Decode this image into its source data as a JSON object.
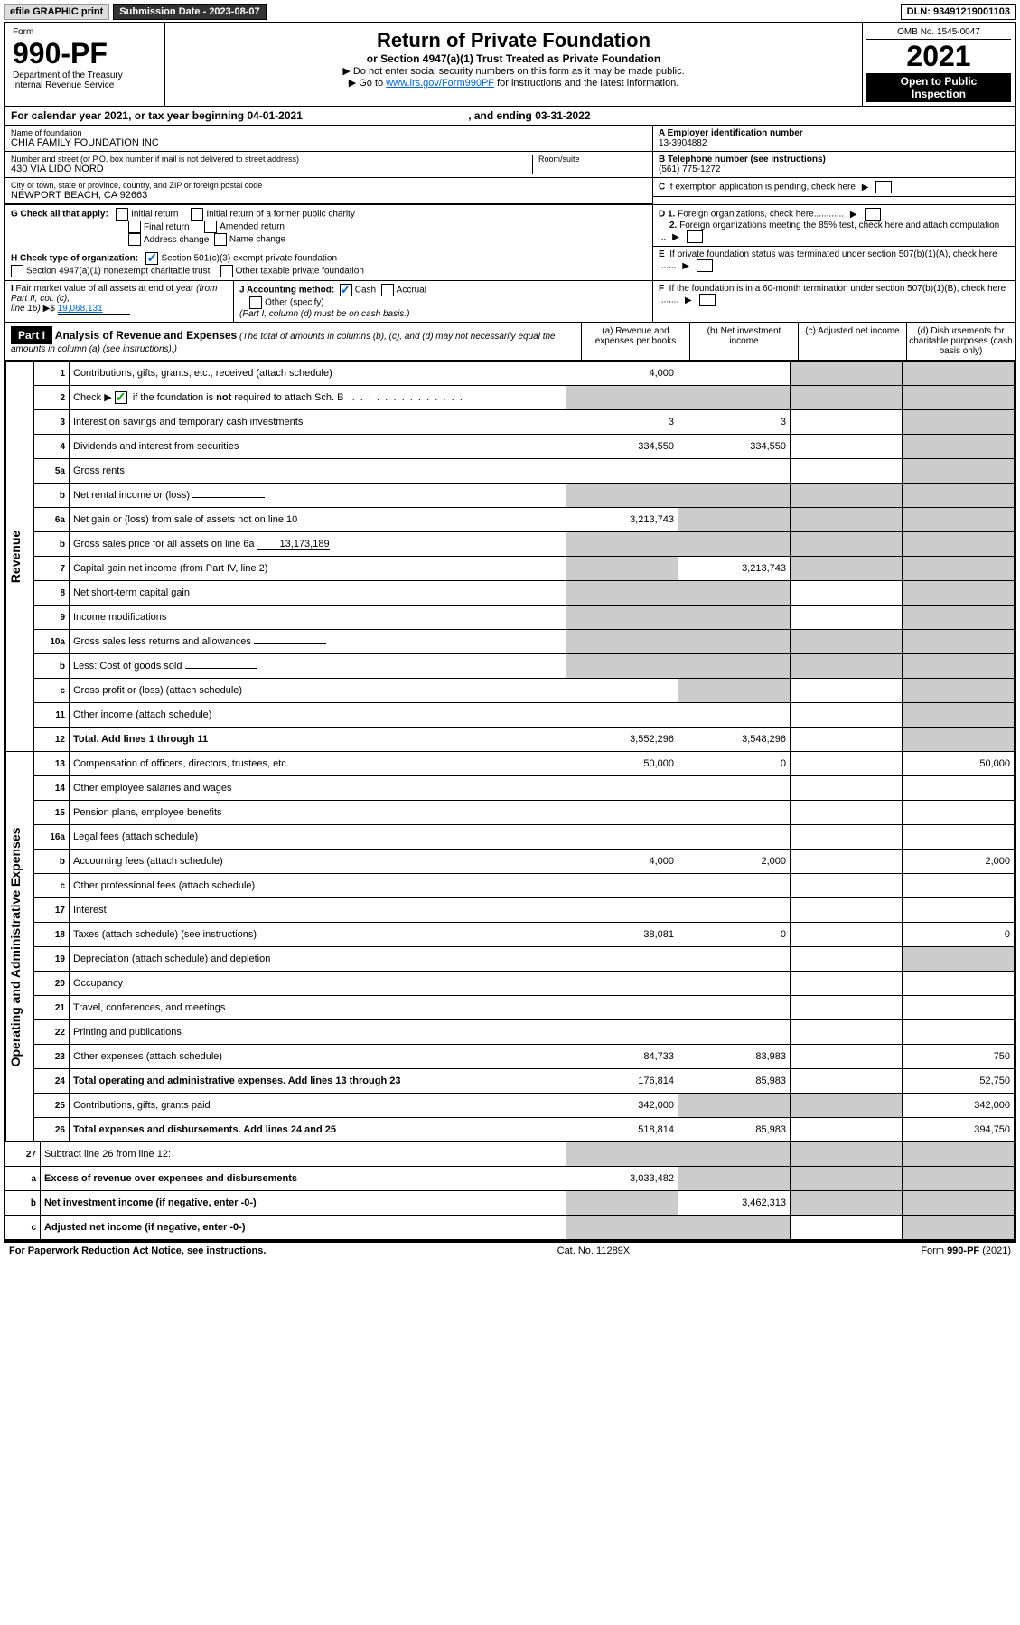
{
  "topbar": {
    "efile": "efile GRAPHIC print",
    "submission": "Submission Date - 2023-08-07",
    "dln": "DLN: 93491219001103"
  },
  "header": {
    "form_label": "Form",
    "form_number": "990-PF",
    "dept1": "Department of the Treasury",
    "dept2": "Internal Revenue Service",
    "title": "Return of Private Foundation",
    "subtitle": "or Section 4947(a)(1) Trust Treated as Private Foundation",
    "note1": "▶ Do not enter social security numbers on this form as it may be made public.",
    "note2_pre": "▶ Go to ",
    "note2_link": "www.irs.gov/Form990PF",
    "note2_post": " for instructions and the latest information.",
    "omb": "OMB No. 1545-0047",
    "year": "2021",
    "open1": "Open to Public",
    "open2": "Inspection"
  },
  "calendar": {
    "text_pre": "For calendar year 2021, or tax year beginning ",
    "begin": "04-01-2021",
    "text_mid": " , and ending ",
    "end": "03-31-2022"
  },
  "info": {
    "name_label": "Name of foundation",
    "name": "CHIA FAMILY FOUNDATION INC",
    "addr_label": "Number and street (or P.O. box number if mail is not delivered to street address)",
    "addr": "430 VIA LIDO NORD",
    "room_label": "Room/suite",
    "city_label": "City or town, state or province, country, and ZIP or foreign postal code",
    "city": "NEWPORT BEACH, CA  92663",
    "a_label": "A Employer identification number",
    "a_val": "13-3904882",
    "b_label": "B Telephone number (see instructions)",
    "b_val": "(561) 775-1272",
    "c_label": "C If exemption application is pending, check here",
    "g_label": "G Check all that apply:",
    "g_opts": [
      "Initial return",
      "Initial return of a former public charity",
      "Final return",
      "Amended return",
      "Address change",
      "Name change"
    ],
    "d1": "D 1. Foreign organizations, check here............",
    "d2": "2. Foreign organizations meeting the 85% test, check here and attach computation ...",
    "h_label": "H Check type of organization:",
    "h_opt1": "Section 501(c)(3) exempt private foundation",
    "h_opt2": "Section 4947(a)(1) nonexempt charitable trust",
    "h_opt3": "Other taxable private foundation",
    "e_label": "E  If private foundation status was terminated under section 507(b)(1)(A), check here .......",
    "i_label": "I Fair market value of all assets at end of year (from Part II, col. (c),",
    "i_line": "line 16) ▶$ ",
    "i_val": "19,068,131",
    "j_label": "J Accounting method:",
    "j_cash": "Cash",
    "j_accrual": "Accrual",
    "j_other": "Other (specify)",
    "j_note": "(Part I, column (d) must be on cash basis.)",
    "f_label": "F  If the foundation is in a 60-month termination under section 507(b)(1)(B), check here ........"
  },
  "part1": {
    "label": "Part I",
    "title": "Analysis of Revenue and Expenses",
    "sub": " (The total of amounts in columns (b), (c), and (d) may not necessarily equal the amounts in column (a) (see instructions).)",
    "col_a": "(a)  Revenue and expenses per books",
    "col_b": "(b)  Net investment income",
    "col_c": "(c)  Adjusted net income",
    "col_d": "(d)  Disbursements for charitable purposes (cash basis only)"
  },
  "sections": {
    "revenue": "Revenue",
    "expenses": "Operating and Administrative Expenses"
  },
  "rows": [
    {
      "n": "1",
      "desc": "Contributions, gifts, grants, etc., received (attach schedule)",
      "a": "4,000",
      "b": "",
      "c": "shade",
      "d": "shade"
    },
    {
      "n": "2",
      "desc": "Check ▶ ☑ if the foundation is not required to attach Sch. B",
      "a": "shade",
      "b": "shade",
      "c": "shade",
      "d": "shade",
      "checkmark": true
    },
    {
      "n": "3",
      "desc": "Interest on savings and temporary cash investments",
      "a": "3",
      "b": "3",
      "c": "",
      "d": "shade"
    },
    {
      "n": "4",
      "desc": "Dividends and interest from securities",
      "a": "334,550",
      "b": "334,550",
      "c": "",
      "d": "shade"
    },
    {
      "n": "5a",
      "desc": "Gross rents",
      "a": "",
      "b": "",
      "c": "",
      "d": "shade"
    },
    {
      "n": "b",
      "desc": "Net rental income or (loss)",
      "a": "shade",
      "b": "shade",
      "c": "shade",
      "d": "shade",
      "inline": ""
    },
    {
      "n": "6a",
      "desc": "Net gain or (loss) from sale of assets not on line 10",
      "a": "3,213,743",
      "b": "shade",
      "c": "shade",
      "d": "shade"
    },
    {
      "n": "b",
      "desc": "Gross sales price for all assets on line 6a",
      "a": "shade",
      "b": "shade",
      "c": "shade",
      "d": "shade",
      "inline": "13,173,189"
    },
    {
      "n": "7",
      "desc": "Capital gain net income (from Part IV, line 2)",
      "a": "shade",
      "b": "3,213,743",
      "c": "shade",
      "d": "shade"
    },
    {
      "n": "8",
      "desc": "Net short-term capital gain",
      "a": "shade",
      "b": "shade",
      "c": "",
      "d": "shade"
    },
    {
      "n": "9",
      "desc": "Income modifications",
      "a": "shade",
      "b": "shade",
      "c": "",
      "d": "shade"
    },
    {
      "n": "10a",
      "desc": "Gross sales less returns and allowances",
      "a": "shade",
      "b": "shade",
      "c": "shade",
      "d": "shade",
      "inline": ""
    },
    {
      "n": "b",
      "desc": "Less: Cost of goods sold",
      "a": "shade",
      "b": "shade",
      "c": "shade",
      "d": "shade",
      "inline": ""
    },
    {
      "n": "c",
      "desc": "Gross profit or (loss) (attach schedule)",
      "a": "",
      "b": "shade",
      "c": "",
      "d": "shade"
    },
    {
      "n": "11",
      "desc": "Other income (attach schedule)",
      "a": "",
      "b": "",
      "c": "",
      "d": "shade"
    },
    {
      "n": "12",
      "desc": "Total. Add lines 1 through 11",
      "a": "3,552,296",
      "b": "3,548,296",
      "c": "",
      "d": "shade",
      "bold": true
    }
  ],
  "exp_rows": [
    {
      "n": "13",
      "desc": "Compensation of officers, directors, trustees, etc.",
      "a": "50,000",
      "b": "0",
      "c": "",
      "d": "50,000"
    },
    {
      "n": "14",
      "desc": "Other employee salaries and wages",
      "a": "",
      "b": "",
      "c": "",
      "d": ""
    },
    {
      "n": "15",
      "desc": "Pension plans, employee benefits",
      "a": "",
      "b": "",
      "c": "",
      "d": ""
    },
    {
      "n": "16a",
      "desc": "Legal fees (attach schedule)",
      "a": "",
      "b": "",
      "c": "",
      "d": ""
    },
    {
      "n": "b",
      "desc": "Accounting fees (attach schedule)",
      "a": "4,000",
      "b": "2,000",
      "c": "",
      "d": "2,000"
    },
    {
      "n": "c",
      "desc": "Other professional fees (attach schedule)",
      "a": "",
      "b": "",
      "c": "",
      "d": ""
    },
    {
      "n": "17",
      "desc": "Interest",
      "a": "",
      "b": "",
      "c": "",
      "d": ""
    },
    {
      "n": "18",
      "desc": "Taxes (attach schedule) (see instructions)",
      "a": "38,081",
      "b": "0",
      "c": "",
      "d": "0"
    },
    {
      "n": "19",
      "desc": "Depreciation (attach schedule) and depletion",
      "a": "",
      "b": "",
      "c": "",
      "d": "shade"
    },
    {
      "n": "20",
      "desc": "Occupancy",
      "a": "",
      "b": "",
      "c": "",
      "d": ""
    },
    {
      "n": "21",
      "desc": "Travel, conferences, and meetings",
      "a": "",
      "b": "",
      "c": "",
      "d": ""
    },
    {
      "n": "22",
      "desc": "Printing and publications",
      "a": "",
      "b": "",
      "c": "",
      "d": ""
    },
    {
      "n": "23",
      "desc": "Other expenses (attach schedule)",
      "a": "84,733",
      "b": "83,983",
      "c": "",
      "d": "750"
    },
    {
      "n": "24",
      "desc": "Total operating and administrative expenses. Add lines 13 through 23",
      "a": "176,814",
      "b": "85,983",
      "c": "",
      "d": "52,750",
      "bold": true
    },
    {
      "n": "25",
      "desc": "Contributions, gifts, grants paid",
      "a": "342,000",
      "b": "shade",
      "c": "shade",
      "d": "342,000"
    },
    {
      "n": "26",
      "desc": "Total expenses and disbursements. Add lines 24 and 25",
      "a": "518,814",
      "b": "85,983",
      "c": "",
      "d": "394,750",
      "bold": true
    }
  ],
  "bottom_rows": [
    {
      "n": "27",
      "desc": "Subtract line 26 from line 12:",
      "a": "shade",
      "b": "shade",
      "c": "shade",
      "d": "shade"
    },
    {
      "n": "a",
      "desc": "Excess of revenue over expenses and disbursements",
      "a": "3,033,482",
      "b": "shade",
      "c": "shade",
      "d": "shade",
      "bold": true
    },
    {
      "n": "b",
      "desc": "Net investment income (if negative, enter -0-)",
      "a": "shade",
      "b": "3,462,313",
      "c": "shade",
      "d": "shade",
      "bold": true
    },
    {
      "n": "c",
      "desc": "Adjusted net income (if negative, enter -0-)",
      "a": "shade",
      "b": "shade",
      "c": "",
      "d": "shade",
      "bold": true
    }
  ],
  "footer": {
    "left": "For Paperwork Reduction Act Notice, see instructions.",
    "mid": "Cat. No. 11289X",
    "right": "Form 990-PF (2021)"
  }
}
